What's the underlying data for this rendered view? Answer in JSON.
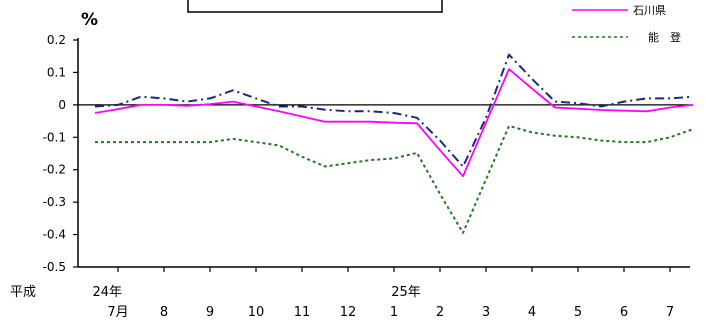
{
  "chart_data": {
    "type": "line",
    "unit_label": "%",
    "era_label": "平成",
    "year_labels": [
      {
        "index": 0,
        "text": "24年"
      },
      {
        "index": 6,
        "text": "25年"
      }
    ],
    "categories": [
      "7月",
      "8",
      "9",
      "10",
      "11",
      "12",
      "1",
      "2",
      "3",
      "4",
      "5",
      "6",
      "7"
    ],
    "ylim": [
      -0.5,
      0.2
    ],
    "yticks": [
      "0.2",
      "0.1",
      "0",
      "-0.1",
      "-0.2",
      "-0.3",
      "-0.4",
      "-0.5"
    ],
    "ytick_values": [
      0.2,
      0.1,
      0,
      -0.1,
      -0.2,
      -0.3,
      -0.4,
      -0.5
    ],
    "x_values": [
      -0.5,
      0,
      0.5,
      1,
      1.5,
      2,
      2.5,
      3,
      3.5,
      4,
      4.5,
      5,
      5.5,
      6,
      6.5,
      7,
      7.5,
      8,
      8.5,
      9,
      9.5,
      10,
      10.5,
      11,
      11.5,
      12,
      12.5
    ],
    "series": [
      {
        "name": "",
        "color": "#1a2a7a",
        "style": "dashdot",
        "values": [
          -0.005,
          0.0,
          0.025,
          0.02,
          0.01,
          0.02,
          0.045,
          0.02,
          -0.005,
          -0.005,
          -0.015,
          -0.02,
          -0.02,
          -0.025,
          -0.04,
          -0.11,
          -0.19,
          -0.04,
          0.155,
          0.08,
          0.01,
          0.005,
          -0.005,
          0.01,
          0.02,
          0.02,
          0.025
        ]
      },
      {
        "name": "石川県",
        "color": "#ff00ff",
        "style": "solid",
        "values": [
          -0.025,
          -0.013,
          0.0,
          0.0,
          -0.003,
          0.002,
          0.01,
          -0.005,
          -0.02,
          -0.036,
          -0.052,
          -0.052,
          -0.052,
          -0.055,
          -0.057,
          -0.14,
          -0.22,
          -0.055,
          0.11,
          0.05,
          -0.008,
          -0.012,
          -0.016,
          -0.018,
          -0.02,
          -0.008,
          0.0
        ]
      },
      {
        "name": "能　登",
        "color": "#1f7a1f",
        "style": "dotted",
        "values": [
          -0.115,
          -0.115,
          -0.115,
          -0.115,
          -0.115,
          -0.115,
          -0.105,
          -0.115,
          -0.125,
          -0.16,
          -0.19,
          -0.18,
          -0.17,
          -0.165,
          -0.148,
          -0.275,
          -0.395,
          -0.23,
          -0.065,
          -0.085,
          -0.095,
          -0.1,
          -0.11,
          -0.115,
          -0.115,
          -0.1,
          -0.075
        ]
      }
    ]
  }
}
